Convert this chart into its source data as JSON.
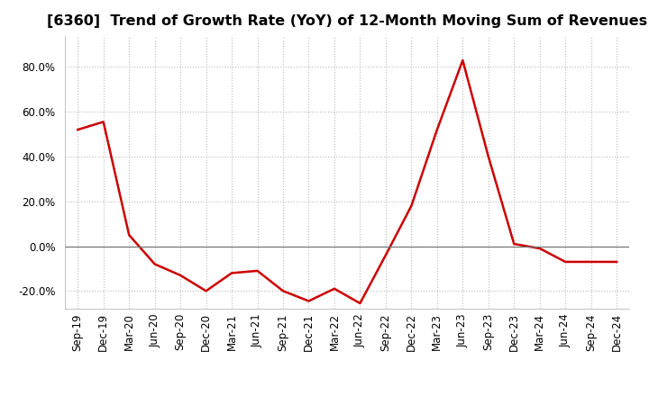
{
  "title": "[6360]  Trend of Growth Rate (YoY) of 12-Month Moving Sum of Revenues",
  "line_color": "#CC0000",
  "background_color": "#FFFFFF",
  "grid_color": "#BBBBBB",
  "x_labels": [
    "Sep-19",
    "Dec-19",
    "Mar-20",
    "Jun-20",
    "Sep-20",
    "Dec-20",
    "Mar-21",
    "Jun-21",
    "Sep-21",
    "Dec-21",
    "Mar-22",
    "Jun-22",
    "Sep-22",
    "Dec-22",
    "Mar-23",
    "Jun-23",
    "Sep-23",
    "Dec-23",
    "Mar-24",
    "Jun-24",
    "Sep-24",
    "Dec-24"
  ],
  "y_values": [
    0.52,
    0.555,
    0.05,
    -0.08,
    -0.13,
    -0.2,
    -0.12,
    -0.11,
    -0.2,
    -0.245,
    -0.19,
    -0.255,
    -0.04,
    0.18,
    0.52,
    0.83,
    0.4,
    0.01,
    -0.01,
    -0.07,
    -0.07,
    -0.07
  ],
  "ylim": [
    -0.28,
    0.94
  ],
  "yticks": [
    -0.2,
    0.0,
    0.2,
    0.4,
    0.6,
    0.8
  ],
  "title_fontsize": 11.5,
  "tick_fontsize": 8.5,
  "line_width": 1.8
}
